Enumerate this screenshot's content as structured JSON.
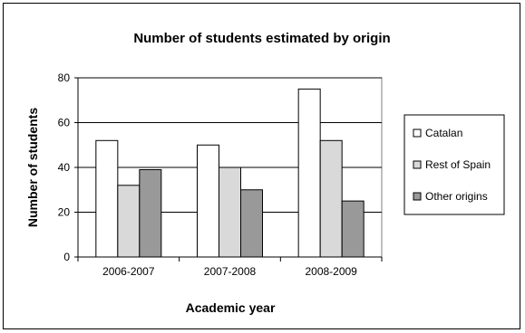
{
  "chart_data": {
    "type": "bar",
    "title": "Number of students estimated by origin",
    "xlabel": "Academic year",
    "ylabel": "Number of students",
    "categories": [
      "2006-2007",
      "2007-2008",
      "2008-2009"
    ],
    "series": [
      {
        "name": "Catalan",
        "values": [
          52,
          50,
          75
        ],
        "color": "#ffffff"
      },
      {
        "name": "Rest of Spain",
        "values": [
          32,
          40,
          52
        ],
        "color": "#d9d9d9"
      },
      {
        "name": "Other origins",
        "values": [
          39,
          30,
          25
        ],
        "color": "#999999"
      }
    ],
    "ylim": [
      0,
      80
    ],
    "yticks": [
      0,
      20,
      40,
      60,
      80
    ],
    "grid": true,
    "legend_position": "right"
  }
}
